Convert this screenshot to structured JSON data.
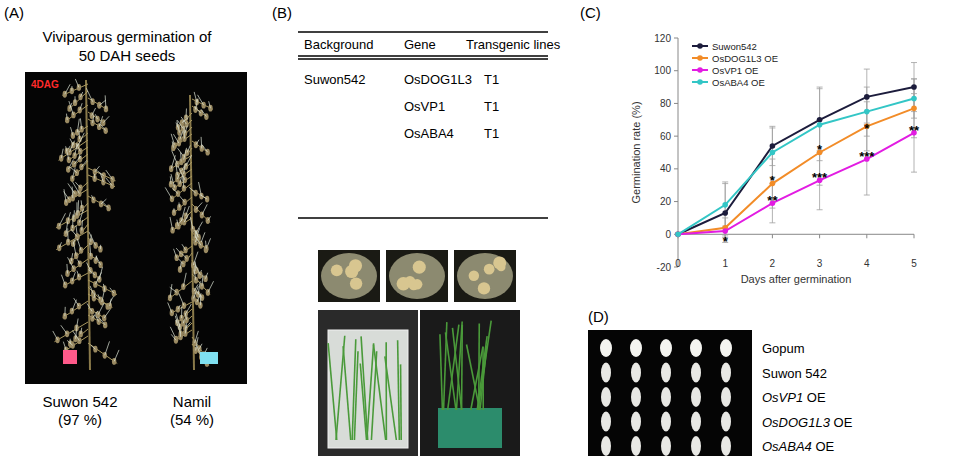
{
  "panels": {
    "a": {
      "label": "(A)",
      "title": [
        "Viviparous germination of",
        "50 DAH seeds"
      ],
      "photo_label": "4DAG",
      "varieties": [
        {
          "name": "Suwon 542",
          "rate": "(97 %)"
        },
        {
          "name": "Namil",
          "rate": "(54 %)"
        }
      ]
    },
    "b": {
      "label": "(B)",
      "table": {
        "header": [
          "Background",
          "Gene",
          "Transgenic lines"
        ],
        "rows": [
          [
            "Suwon542",
            "OsDOG1L3",
            "T1"
          ],
          [
            null,
            "OsVP1",
            "T1"
          ],
          [
            null,
            "OsABA4",
            "T1"
          ]
        ]
      }
    },
    "c": {
      "label": "(C)"
    },
    "d": {
      "label": "(D)",
      "rows": [
        "Gopum",
        "Suwon 542",
        "OsVP1 OE",
        "OsDOG1L3 OE",
        "OsABA4 OE"
      ]
    }
  },
  "chart_data": {
    "type": "line",
    "x_label": "Days after germination",
    "y_label": "Germination rate (%)",
    "x": [
      0,
      1,
      2,
      3,
      4,
      5
    ],
    "xlim": [
      0,
      5
    ],
    "xticks": [
      0,
      1,
      2,
      3,
      4,
      5
    ],
    "ylim": [
      -20,
      120
    ],
    "yticks": [
      -20,
      0,
      20,
      40,
      60,
      80,
      100,
      120
    ],
    "grid": false,
    "legend": "top-left",
    "series": [
      {
        "name": "Suwon542",
        "color": "#1c1c3c",
        "marker": "circle",
        "values": [
          0,
          13,
          54,
          70,
          84,
          90
        ],
        "errors": [
          0,
          18,
          12,
          20,
          17,
          15
        ]
      },
      {
        "name": "OsDOG1L3 OE",
        "color": "#f28c28",
        "marker": "circle",
        "values": [
          0,
          4,
          31,
          50,
          66,
          77
        ],
        "errors": [
          0,
          6,
          15,
          20,
          15,
          18
        ]
      },
      {
        "name": "OsVP1 OE",
        "color": "#e21ce2",
        "marker": "circle",
        "values": [
          0,
          2,
          19,
          33,
          46,
          62
        ],
        "errors": [
          0,
          3,
          12,
          18,
          22,
          24
        ]
      },
      {
        "name": "OsABA4 OE",
        "color": "#33c6c6",
        "marker": "circle",
        "values": [
          0,
          18,
          50,
          67,
          75,
          83
        ],
        "errors": [
          0,
          14,
          15,
          22,
          15,
          12
        ]
      }
    ],
    "annotations": [
      {
        "text": "*",
        "x": 1,
        "y": -4
      },
      {
        "text": "*",
        "x": 2,
        "y": 33
      },
      {
        "text": "**",
        "x": 2,
        "y": 21
      },
      {
        "text": "*",
        "x": 3,
        "y": 52
      },
      {
        "text": "***",
        "x": 3,
        "y": 35
      },
      {
        "text": "*",
        "x": 4,
        "y": 65
      },
      {
        "text": "***",
        "x": 4,
        "y": 48
      },
      {
        "text": "**",
        "x": 5,
        "y": 64
      }
    ]
  }
}
